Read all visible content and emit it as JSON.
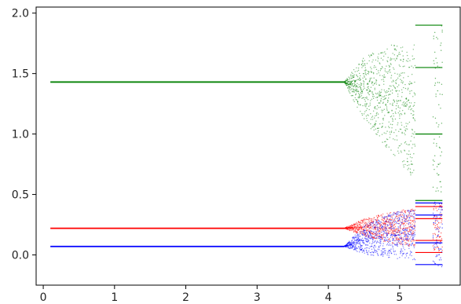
{
  "chart_data": {
    "type": "scatter",
    "title": "",
    "xlabel": "",
    "ylabel": "",
    "xlim": [
      -0.1,
      5.85
    ],
    "ylim": [
      -0.25,
      2.05
    ],
    "grid": false,
    "legend": "none",
    "x_ticks": [
      0,
      1,
      2,
      3,
      4,
      5
    ],
    "x_tick_labels": [
      "0",
      "1",
      "2",
      "3",
      "4",
      "5"
    ],
    "y_ticks": [
      0.0,
      0.5,
      1.0,
      1.5,
      2.0
    ],
    "y_tick_labels": [
      "0.0",
      "0.5",
      "1.0",
      "1.5",
      "2.0"
    ],
    "x_range": [
      0.1,
      5.6
    ],
    "bifurcation_x": 4.22,
    "period_doubling_x": 5.22,
    "series": [
      {
        "color": "#008000",
        "steady_value": 1.43,
        "chaotic_band_at_x": [
          {
            "x": 4.22,
            "min": 1.43,
            "max": 1.43
          },
          {
            "x": 4.5,
            "min": 1.05,
            "max": 1.7
          },
          {
            "x": 4.8,
            "min": 0.8,
            "max": 1.82
          },
          {
            "x": 5.0,
            "min": 0.65,
            "max": 1.87
          },
          {
            "x": 5.2,
            "min": 0.5,
            "max": 1.9
          }
        ],
        "periodic_branches": [
          1.9,
          1.55,
          1.0,
          0.45
        ]
      },
      {
        "color": "#ff0000",
        "steady_value": 0.22,
        "chaotic_band_at_x": [
          {
            "x": 4.22,
            "min": 0.22,
            "max": 0.22
          },
          {
            "x": 4.5,
            "min": 0.14,
            "max": 0.32
          },
          {
            "x": 4.8,
            "min": 0.08,
            "max": 0.37
          },
          {
            "x": 5.0,
            "min": 0.05,
            "max": 0.4
          },
          {
            "x": 5.2,
            "min": 0.03,
            "max": 0.43
          }
        ],
        "periodic_branches": [
          0.4,
          0.3,
          0.12,
          0.02
        ]
      },
      {
        "color": "#0000ff",
        "steady_value": 0.07,
        "chaotic_band_at_x": [
          {
            "x": 4.22,
            "min": 0.07,
            "max": 0.07
          },
          {
            "x": 4.5,
            "min": -0.02,
            "max": 0.27
          },
          {
            "x": 4.8,
            "min": -0.06,
            "max": 0.37
          },
          {
            "x": 5.0,
            "min": -0.08,
            "max": 0.41
          },
          {
            "x": 5.2,
            "min": -0.1,
            "max": 0.44
          }
        ],
        "periodic_branches": [
          0.43,
          0.33,
          0.1,
          -0.08
        ]
      }
    ]
  }
}
